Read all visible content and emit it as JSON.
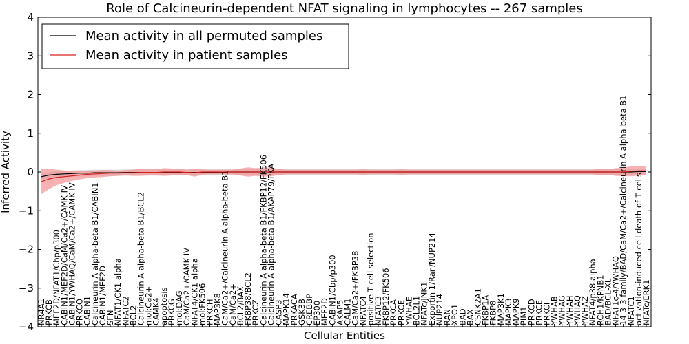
{
  "chart_data": {
    "type": "line",
    "title": "Role of Calcineurin-dependent NFAT signaling in lymphocytes -- 267 samples",
    "xlabel": "Cellular Entities",
    "ylabel": "Inferred Activity",
    "ylim": [
      -4,
      4
    ],
    "yticks": [
      -4,
      -3,
      -2,
      -1,
      0,
      1,
      2,
      3,
      4
    ],
    "legend_position": "top-left",
    "categories": [
      "NR4A1",
      "PRKCB",
      "MEF2D/NFAT1/Cbp/p300",
      "CABIN1/MEF2D/CaM/Ca2+/CAMK IV",
      "CABIN1/YWHAQ/CaM/Ca2+/CAMK IV",
      "PRKCQ",
      "CABIN1",
      "Calcineurin A alpha-beta B1/CABIN1",
      "CABIN1/MEF2D",
      "SFN",
      "NFAT1/CK1 alpha",
      "NFATC2",
      "BCL2",
      "Calcineurin A alpha-beta B1/BCL2",
      "mol:Ca2+",
      "CAMK4",
      "apoptosis",
      "PRKCG",
      "mol:DAG",
      "CaM/Ca2+/CAMK IV",
      "NFAT4/CK1 alpha",
      "mol:FK506",
      "PRKCH",
      "MAP3K8",
      "CaM/Ca2+/Calcineurin A alpha-beta B1",
      "CaM/Ca2+",
      "BCL2/BAX",
      "FKBP38/BCL2",
      "PRKCZ",
      "Calcineurin A alpha-beta B1/FKBP12/FK506",
      "Calcineurin A alpha-beta B1/AKAP79/PKA",
      "CASP3",
      "MAPK14",
      "PRKACA",
      "GSK3B",
      "CREBBP",
      "EP300",
      "MEF2D",
      "CABIN1/Cbp/p300",
      "AKAP5",
      "CALM1",
      "CaM/Ca2+/FKBP38",
      "NFATC4",
      "positive T cell selection",
      "NFATC3",
      "FKBP12/FK506",
      "PRKCA",
      "PRKCE",
      "YWHAE",
      "BCL2L1",
      "NFATc/JNK1",
      "Exportin 1/Ran/NUP214",
      "NUP214",
      "RAN",
      "XPO1",
      "BAD",
      "BAX",
      "CSNK2A1",
      "FKBP1A",
      "FKBP8",
      "MAP3K1",
      "MAPK3",
      "MAPK9",
      "PIM1",
      "PRKCD",
      "PRKCE",
      "PRKCI",
      "YWHAB",
      "YWHAG",
      "YWHAH",
      "YWHAQ",
      "YWHAZ",
      "NFAT4/p38 alpha",
      "RCH1/KPNB1",
      "BAD/BCL-XL",
      "NFAT1c-4/YWHAQ",
      "14-3-3 family/BAD/CaM/Ca2+/Calcineurin A alpha-beta B1",
      "NFATC1",
      "activation-induced cell death of T cells",
      "NFATc/ERK1"
    ],
    "series": [
      {
        "name": "Mean activity in all permuted samples",
        "color": "#000000",
        "values": [
          -0.12,
          -0.08,
          -0.06,
          -0.05,
          -0.04,
          -0.03,
          -0.03,
          -0.02,
          -0.02,
          -0.02,
          -0.02,
          -0.01,
          -0.01,
          -0.01,
          -0.01,
          -0.01,
          -0.01,
          -0.01,
          -0.01,
          -0.01,
          -0.01,
          -0.01,
          -0.01,
          -0.01,
          0.0,
          0.0,
          0.0,
          0.0,
          0.0,
          0.0,
          0.0,
          0.0,
          0.0,
          0.0,
          0.0,
          0.0,
          0.0,
          0.0,
          0.0,
          0.0,
          0.0,
          0.0,
          0.0,
          0.0,
          0.0,
          0.0,
          0.0,
          0.0,
          0.0,
          0.0,
          0.0,
          0.0,
          0.0,
          0.0,
          0.0,
          0.0,
          0.0,
          0.0,
          0.0,
          0.0,
          0.0,
          0.0,
          0.0,
          0.0,
          0.0,
          0.0,
          0.0,
          0.0,
          0.0,
          0.0,
          0.0,
          0.0,
          0.0,
          0.0,
          0.0,
          0.0,
          0.0,
          0.0,
          0.01,
          0.01
        ],
        "band": 0.08,
        "band_color": "#cccccc"
      },
      {
        "name": "Mean activity in patient samples",
        "color": "#d62020",
        "values": [
          -0.25,
          -0.18,
          -0.14,
          -0.12,
          -0.1,
          -0.08,
          -0.06,
          -0.05,
          -0.04,
          -0.03,
          -0.03,
          -0.02,
          -0.02,
          -0.01,
          -0.01,
          -0.01,
          0.0,
          0.0,
          0.0,
          -0.01,
          -0.02,
          0.0,
          0.0,
          0.0,
          0.0,
          0.0,
          0.0,
          0.0,
          0.0,
          0.0,
          0.0,
          0.0,
          0.0,
          0.0,
          0.0,
          0.0,
          0.0,
          0.0,
          0.0,
          0.0,
          0.0,
          0.0,
          0.0,
          0.0,
          0.0,
          0.0,
          0.0,
          0.0,
          0.0,
          0.0,
          0.0,
          0.0,
          0.0,
          0.0,
          0.0,
          0.0,
          0.0,
          0.0,
          0.0,
          0.0,
          0.0,
          0.0,
          0.0,
          0.0,
          0.0,
          0.0,
          0.0,
          0.0,
          0.0,
          0.0,
          0.0,
          0.0,
          0.0,
          0.0,
          0.0,
          0.0,
          0.0,
          0.02,
          0.03,
          0.03
        ],
        "band": [
          0.32,
          0.26,
          0.2,
          0.16,
          0.13,
          0.11,
          0.1,
          0.09,
          0.09,
          0.08,
          0.07,
          0.07,
          0.08,
          0.09,
          0.08,
          0.08,
          0.1,
          0.09,
          0.08,
          0.07,
          0.1,
          0.07,
          0.06,
          0.06,
          0.06,
          0.06,
          0.09,
          0.12,
          0.1,
          0.12,
          0.11,
          0.08,
          0.06,
          0.06,
          0.06,
          0.06,
          0.06,
          0.06,
          0.06,
          0.06,
          0.06,
          0.06,
          0.07,
          0.06,
          0.06,
          0.06,
          0.06,
          0.07,
          0.06,
          0.06,
          0.06,
          0.06,
          0.06,
          0.06,
          0.06,
          0.06,
          0.06,
          0.06,
          0.06,
          0.06,
          0.06,
          0.06,
          0.06,
          0.06,
          0.06,
          0.06,
          0.06,
          0.06,
          0.06,
          0.06,
          0.06,
          0.06,
          0.06,
          0.09,
          0.07,
          0.1,
          0.11,
          0.13,
          0.12,
          0.12
        ],
        "band_color": "#f28b8b"
      }
    ]
  }
}
